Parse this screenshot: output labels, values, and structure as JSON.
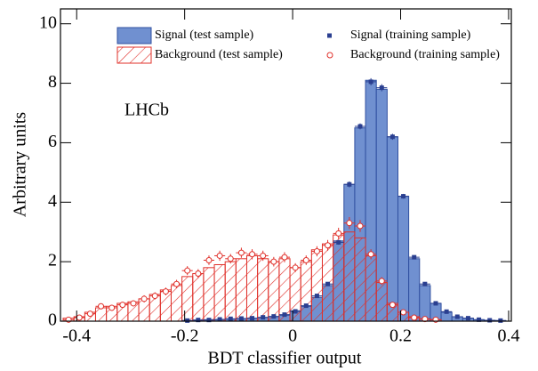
{
  "chart_data": {
    "type": "histogram",
    "xlabel": "BDT classifier output",
    "ylabel": "Arbitrary units",
    "annotation": "LHCb",
    "bins": [
      -0.425,
      -0.405,
      -0.385,
      -0.365,
      -0.345,
      -0.325,
      -0.305,
      -0.285,
      -0.265,
      -0.245,
      -0.225,
      -0.205,
      -0.185,
      -0.165,
      -0.145,
      -0.125,
      -0.105,
      -0.085,
      -0.065,
      -0.045,
      -0.025,
      -0.005,
      0.015,
      0.035,
      0.055,
      0.075,
      0.095,
      0.115,
      0.135,
      0.155,
      0.175,
      0.195,
      0.215,
      0.235,
      0.255,
      0.275,
      0.295,
      0.315,
      0.335,
      0.355,
      0.375,
      0.395
    ],
    "xlim": [
      -0.43,
      0.405
    ],
    "xticks": [
      -0.4,
      -0.2,
      0,
      0.2,
      0.4
    ],
    "ylim": [
      0,
      10.5
    ],
    "yticks": [
      0,
      2,
      4,
      6,
      8,
      10
    ],
    "series": [
      {
        "name": "Signal (test sample)",
        "color": "#7090d0",
        "marker": "bar",
        "values": [
          0,
          0,
          0,
          0,
          0,
          0,
          0,
          0,
          0,
          0,
          0,
          0.02,
          0.03,
          0.05,
          0.05,
          0.07,
          0.08,
          0.1,
          0.12,
          0.15,
          0.2,
          0.35,
          0.5,
          0.8,
          1.2,
          2.7,
          4.6,
          6.5,
          8.1,
          7.8,
          6.2,
          4.2,
          2.1,
          1.2,
          0.6,
          0.3,
          0.15,
          0.1,
          0.05,
          0.03,
          0.02
        ]
      },
      {
        "name": "Background (test sample)",
        "color": "#e0302a",
        "marker": "hatch",
        "values": [
          0.1,
          0.15,
          0.3,
          0.45,
          0.5,
          0.6,
          0.65,
          0.75,
          0.9,
          1.05,
          1.2,
          1.5,
          1.6,
          1.8,
          1.9,
          2.0,
          2.1,
          2.2,
          2.1,
          2.0,
          2.1,
          1.8,
          2.0,
          2.4,
          2.6,
          2.9,
          3.0,
          2.8,
          2.2,
          1.3,
          0.6,
          0.3,
          0.15,
          0.08,
          0.05,
          0,
          0,
          0,
          0,
          0,
          0
        ]
      },
      {
        "name": "Signal (training sample)",
        "color": "#2a3f90",
        "marker": "square",
        "values": [
          null,
          null,
          null,
          null,
          null,
          null,
          null,
          null,
          null,
          null,
          null,
          0.02,
          0.04,
          0.04,
          0.06,
          0.08,
          0.09,
          0.1,
          0.13,
          0.16,
          0.22,
          0.33,
          0.52,
          0.85,
          1.25,
          2.65,
          4.6,
          6.55,
          8.05,
          7.85,
          6.2,
          4.2,
          2.15,
          1.25,
          0.6,
          0.32,
          0.15,
          0.1,
          0.05,
          0.03,
          0.02
        ],
        "errors": [
          null,
          null,
          null,
          null,
          null,
          null,
          null,
          null,
          null,
          null,
          null,
          0.01,
          0.01,
          0.01,
          0.01,
          0.02,
          0.02,
          0.02,
          0.02,
          0.02,
          0.03,
          0.03,
          0.04,
          0.05,
          0.06,
          0.08,
          0.1,
          0.1,
          0.12,
          0.12,
          0.1,
          0.08,
          0.06,
          0.05,
          0.04,
          0.03,
          0.02,
          0.02,
          0.01,
          0.01,
          0.01
        ]
      },
      {
        "name": "Background (training sample)",
        "color": "#e0302a",
        "marker": "circle",
        "values": [
          0.05,
          0.12,
          0.25,
          0.5,
          0.45,
          0.55,
          0.6,
          0.75,
          0.85,
          1.0,
          1.25,
          1.7,
          1.6,
          2.05,
          2.2,
          2.1,
          2.3,
          2.25,
          2.2,
          2.0,
          2.15,
          1.8,
          2.05,
          2.35,
          2.55,
          2.95,
          3.3,
          3.2,
          2.25,
          1.35,
          0.55,
          0.3,
          0.12,
          0.07,
          0.05,
          null,
          null,
          null,
          null,
          null,
          null
        ],
        "errors": [
          0.05,
          0.06,
          0.08,
          0.1,
          0.1,
          0.1,
          0.1,
          0.12,
          0.12,
          0.13,
          0.14,
          0.15,
          0.15,
          0.16,
          0.17,
          0.16,
          0.17,
          0.17,
          0.17,
          0.16,
          0.17,
          0.15,
          0.16,
          0.17,
          0.18,
          0.19,
          0.2,
          0.2,
          0.17,
          0.13,
          0.09,
          0.07,
          0.05,
          0.04,
          0.03,
          null,
          null,
          null,
          null,
          null,
          null
        ]
      }
    ]
  }
}
